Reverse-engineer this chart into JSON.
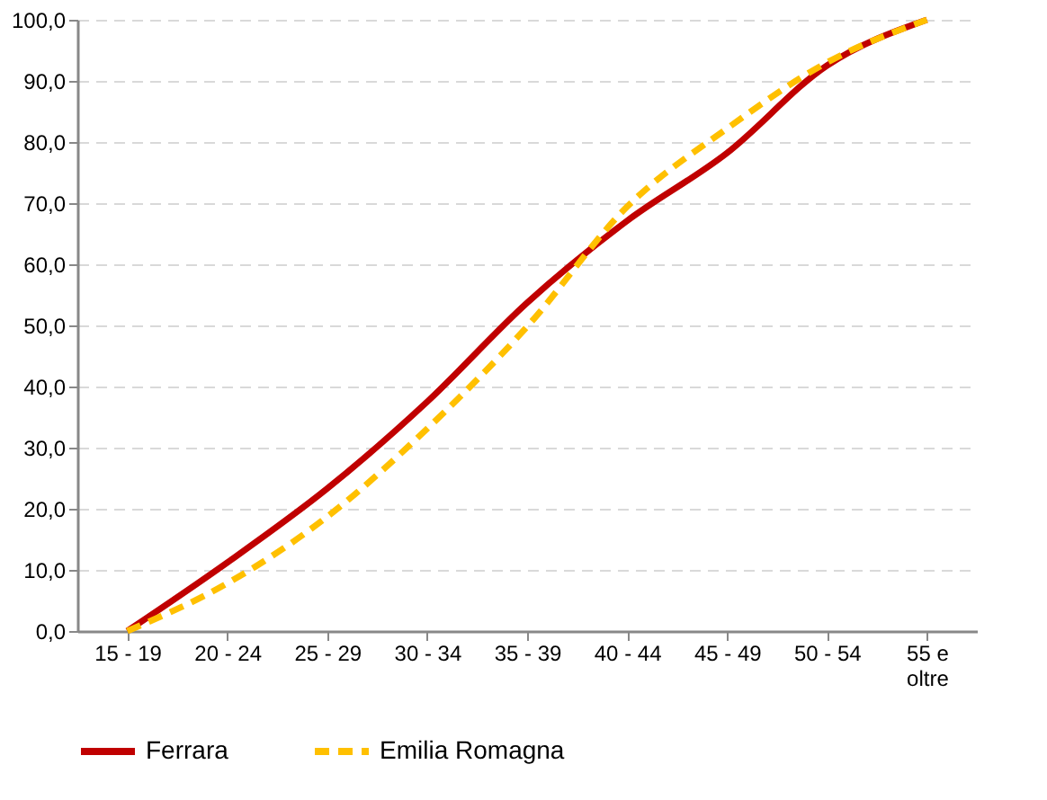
{
  "chart_data": {
    "type": "line",
    "categories": [
      "15 - 19",
      "20 - 24",
      "25 - 29",
      "30 - 34",
      "35 - 39",
      "40 - 44",
      "45 - 49",
      "50 - 54",
      "55 e oltre"
    ],
    "series": [
      {
        "name": "Ferrara",
        "color": "#c00000",
        "line_style": "solid",
        "values": [
          0,
          11.2,
          23.3,
          37.5,
          53.7,
          67.1,
          78.2,
          92.5,
          100
        ]
      },
      {
        "name": "Emilia Romagna",
        "color": "#ffc000",
        "line_style": "dashed",
        "values": [
          0,
          7.8,
          18.7,
          33.1,
          49.8,
          69.4,
          82.2,
          93,
          100
        ]
      }
    ],
    "ylim": [
      0,
      100
    ],
    "yticks": [
      {
        "value": 0,
        "label": "0,0"
      },
      {
        "value": 10,
        "label": "10,0"
      },
      {
        "value": 20,
        "label": "20,0"
      },
      {
        "value": 30,
        "label": "30,0"
      },
      {
        "value": 40,
        "label": "40,0"
      },
      {
        "value": 50,
        "label": "50,0"
      },
      {
        "value": 60,
        "label": "60,0"
      },
      {
        "value": 70,
        "label": "70,0"
      },
      {
        "value": 80,
        "label": "80,0"
      },
      {
        "value": 90,
        "label": "90,0"
      },
      {
        "value": 100,
        "label": "100,0"
      }
    ],
    "grid": "y",
    "legend": "bottom",
    "marker": "none"
  }
}
